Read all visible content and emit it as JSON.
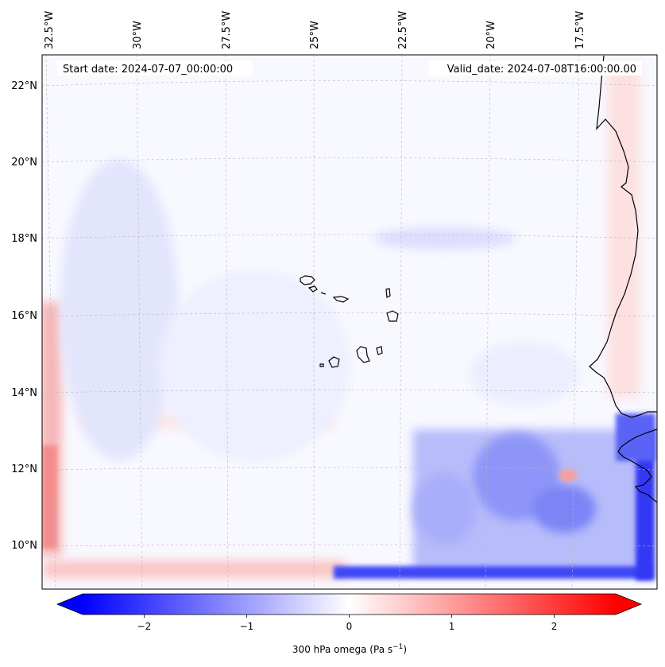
{
  "header": {
    "start_date": "Start date: 2024-07-07_00:00:00",
    "valid_date": "Valid_date: 2024-07-08T16:00:00.00"
  },
  "map": {
    "lon_labels": [
      "32.5°W",
      "30°W",
      "27.5°W",
      "25°W",
      "22.5°W",
      "20°W",
      "17.5°W"
    ],
    "lat_labels": [
      "22°N",
      "20°N",
      "18°N",
      "16°N",
      "14°N",
      "12°N",
      "10°N"
    ],
    "gridlines": "dashed"
  },
  "colorbar": {
    "label_main": "300 hPa omega (Pa s",
    "label_exp": "−1",
    "label_close": ")",
    "ticks": [
      "−2",
      "−1",
      "0",
      "1",
      "2"
    ],
    "tick_values": [
      -2,
      -1,
      0,
      1,
      2
    ],
    "range": [
      -2.6,
      2.6
    ],
    "colormap": "bwr",
    "colors": {
      "negative": "#0000ff",
      "zero": "#ffffff",
      "positive": "#ff0000"
    },
    "extend": "both"
  }
}
